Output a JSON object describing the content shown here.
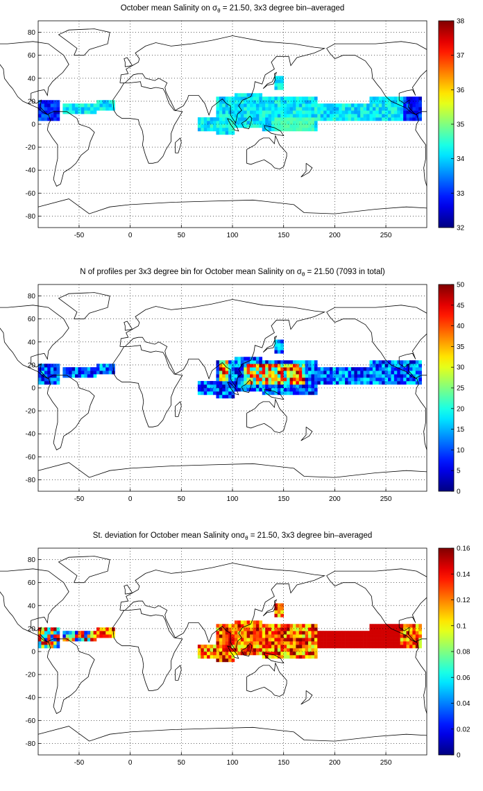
{
  "panels": [
    {
      "title_before": "October mean Salinity on σ",
      "title_sub": "θ",
      "title_after": " = 21.50, 3x3 degree bin–averaged",
      "colorbar": {
        "min": 32,
        "max": 38,
        "ticks": [
          "32",
          "33",
          "34",
          "35",
          "36",
          "37",
          "38"
        ]
      },
      "xticks": [
        "-50",
        "0",
        "50",
        "100",
        "150",
        "200",
        "250"
      ],
      "yticks": [
        "80",
        "60",
        "40",
        "20",
        "0",
        "-20",
        "-40",
        "-60",
        "-80"
      ]
    },
    {
      "title_before": "N of profiles per 3x3 degree bin for October mean Salinity on σ",
      "title_sub": "θ",
      "title_after": " = 21.50 (7093 in total)",
      "colorbar": {
        "min": 0,
        "max": 50,
        "ticks": [
          "0",
          "5",
          "10",
          "15",
          "20",
          "25",
          "30",
          "35",
          "40",
          "45",
          "50"
        ]
      },
      "xticks": [
        "-50",
        "0",
        "50",
        "100",
        "150",
        "200",
        "250"
      ],
      "yticks": [
        "80",
        "60",
        "40",
        "20",
        "0",
        "-20",
        "-40",
        "-60",
        "-80"
      ]
    },
    {
      "title_before": "St. deviation for October mean Salinity onσ",
      "title_sub": "θ",
      "title_after": " = 21.50, 3x3 degree bin–averaged",
      "colorbar": {
        "min": 0,
        "max": 0.16,
        "ticks": [
          "0",
          "0.02",
          "0.04",
          "0.06",
          "0.08",
          "0.1",
          "0.12",
          "0.14",
          "0.16"
        ]
      },
      "xticks": [
        "-50",
        "0",
        "50",
        "100",
        "150",
        "200",
        "250"
      ],
      "yticks": [
        "80",
        "60",
        "40",
        "20",
        "0",
        "-20",
        "-40",
        "-60",
        "-80"
      ]
    }
  ],
  "map": {
    "xlim": [
      -90,
      290
    ],
    "ylim": [
      -90,
      90
    ],
    "grid": "dotted",
    "colormap": "jet",
    "coastline_color": "#000000"
  }
}
